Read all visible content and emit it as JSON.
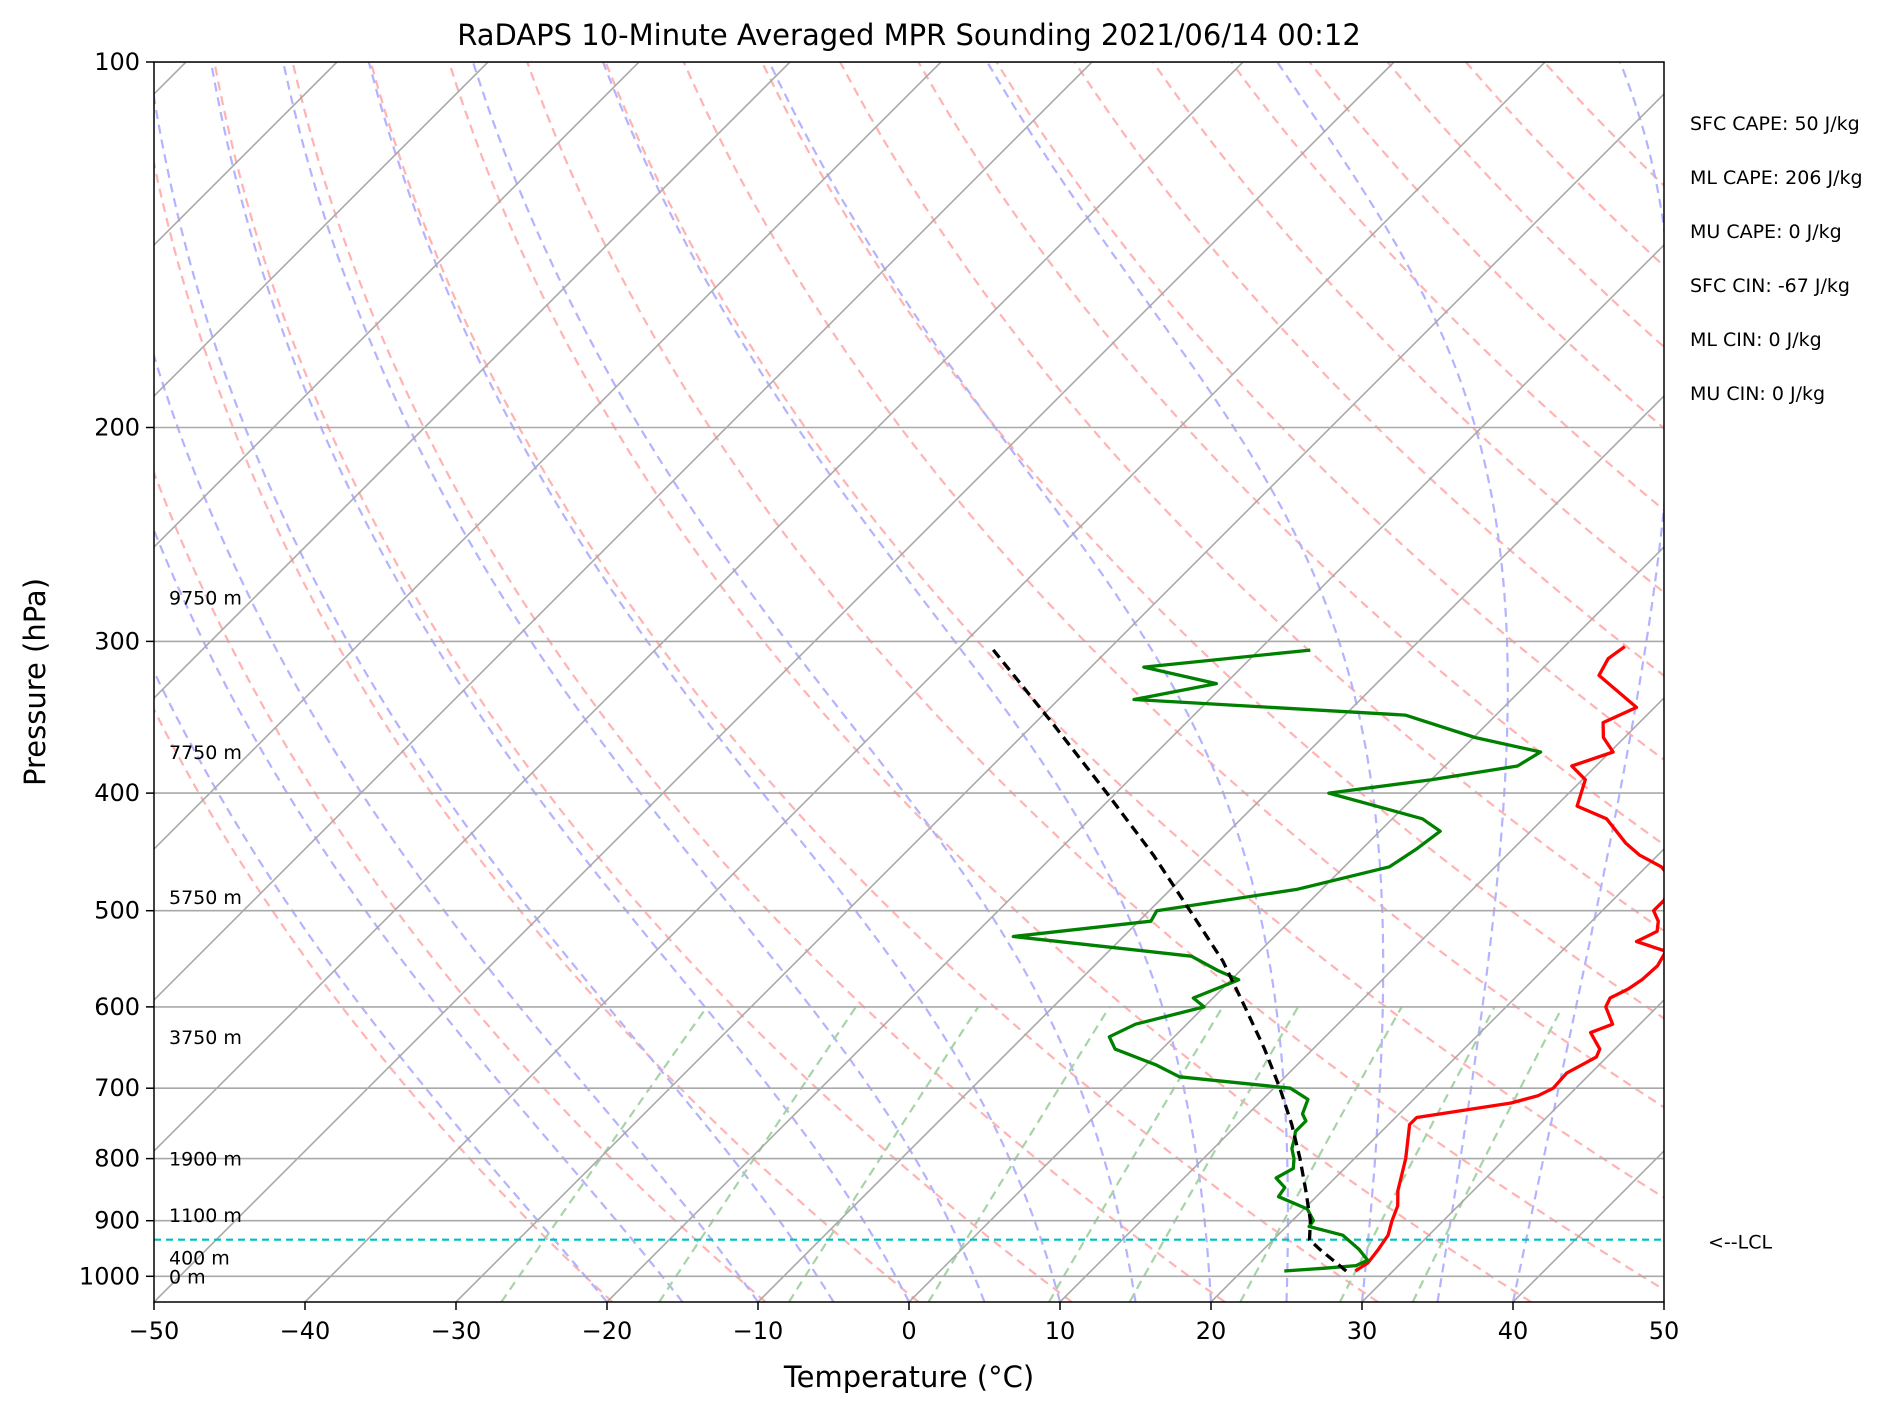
{
  "chart_data": {
    "type": "line",
    "title": "RaDAPS 10-Minute Averaged MPR Sounding 2021/06/14 00:12",
    "xlabel": "Temperature (°C)",
    "ylabel": "Pressure (hPa)",
    "xlim": [
      -50,
      50
    ],
    "ylim": [
      1050,
      100
    ],
    "y_scale": "log",
    "skew": "skew-T",
    "grid": true,
    "x_ticks": [
      -50,
      -40,
      -30,
      -20,
      -10,
      0,
      10,
      20,
      30,
      40,
      50
    ],
    "x_tick_labels": [
      "−50",
      "−40",
      "−30",
      "−20",
      "−10",
      "0",
      "10",
      "20",
      "30",
      "40",
      "50"
    ],
    "y_ticks": [
      100,
      200,
      300,
      400,
      500,
      600,
      700,
      800,
      900,
      1000
    ],
    "y_tick_labels": [
      "100",
      "200",
      "300",
      "400",
      "500",
      "600",
      "700",
      "800",
      "900",
      "1000"
    ],
    "series": [
      {
        "key": "temperature",
        "color": "#ff0000",
        "points": [
          [
            990,
            27.5
          ],
          [
            975,
            27.8
          ],
          [
            950,
            27.6
          ],
          [
            925,
            27.3
          ],
          [
            900,
            26.6
          ],
          [
            875,
            26.0
          ],
          [
            850,
            25.0
          ],
          [
            800,
            23.4
          ],
          [
            750,
            21.4
          ],
          [
            740,
            21.4
          ],
          [
            720,
            26.7
          ],
          [
            710,
            28.0
          ],
          [
            700,
            28.5
          ],
          [
            680,
            28.4
          ],
          [
            660,
            29.3
          ],
          [
            650,
            29.0
          ],
          [
            630,
            27.3
          ],
          [
            620,
            28.2
          ],
          [
            600,
            26.6
          ],
          [
            590,
            26.3
          ],
          [
            580,
            26.9
          ],
          [
            570,
            27.2
          ],
          [
            555,
            27.3
          ],
          [
            540,
            26.9
          ],
          [
            530,
            24.3
          ],
          [
            520,
            25.0
          ],
          [
            510,
            24.4
          ],
          [
            500,
            23.4
          ],
          [
            490,
            23.4
          ],
          [
            470,
            22.4
          ],
          [
            460,
            21.0
          ],
          [
            450,
            18.8
          ],
          [
            440,
            17.1
          ],
          [
            420,
            14.2
          ],
          [
            410,
            11.4
          ],
          [
            390,
            10.2
          ],
          [
            380,
            8.4
          ],
          [
            370,
            10.2
          ],
          [
            360,
            8.6
          ],
          [
            350,
            7.6
          ],
          [
            340,
            8.8
          ],
          [
            320,
            4.2
          ],
          [
            310,
            3.7
          ],
          [
            303,
            4.0
          ]
        ]
      },
      {
        "key": "dewpoint",
        "color": "#008000",
        "points": [
          [
            990,
            22.8
          ],
          [
            985,
            25.2
          ],
          [
            980,
            27.2
          ],
          [
            970,
            27.6
          ],
          [
            950,
            26.3
          ],
          [
            925,
            24.3
          ],
          [
            910,
            21.5
          ],
          [
            900,
            21.4
          ],
          [
            880,
            20.2
          ],
          [
            860,
            17.5
          ],
          [
            845,
            17.3
          ],
          [
            830,
            16.1
          ],
          [
            815,
            16.6
          ],
          [
            800,
            16.0
          ],
          [
            785,
            15.2
          ],
          [
            770,
            14.7
          ],
          [
            760,
            14.3
          ],
          [
            745,
            14.3
          ],
          [
            735,
            13.6
          ],
          [
            715,
            13.0
          ],
          [
            700,
            11.1
          ],
          [
            685,
            3.0
          ],
          [
            670,
            0.7
          ],
          [
            650,
            -3.1
          ],
          [
            635,
            -4.3
          ],
          [
            620,
            -3.4
          ],
          [
            600,
            0.0
          ],
          [
            590,
            -1.3
          ],
          [
            570,
            0.5
          ],
          [
            560,
            -1.5
          ],
          [
            545,
            -4.2
          ],
          [
            525,
            -17.3
          ],
          [
            510,
            -9.2
          ],
          [
            500,
            -9.5
          ],
          [
            480,
            -1.6
          ],
          [
            460,
            3.0
          ],
          [
            445,
            3.6
          ],
          [
            430,
            4.0
          ],
          [
            420,
            2.0
          ],
          [
            400,
            -5.9
          ],
          [
            390,
            0.0
          ],
          [
            380,
            4.8
          ],
          [
            370,
            5.4
          ],
          [
            360,
            0.1
          ],
          [
            345,
            -6.0
          ],
          [
            335,
            -25.0
          ],
          [
            325,
            -20.6
          ],
          [
            315,
            -26.5
          ],
          [
            305,
            -16.6
          ]
        ]
      },
      {
        "key": "parcel",
        "color": "#000000",
        "dashed": true,
        "points": [
          [
            990,
            26.9
          ],
          [
            950,
            23.7
          ],
          [
            933,
            22.4
          ],
          [
            900,
            21.2
          ],
          [
            850,
            18.9
          ],
          [
            800,
            16.4
          ],
          [
            750,
            13.6
          ],
          [
            700,
            10.4
          ],
          [
            650,
            6.8
          ],
          [
            600,
            2.7
          ],
          [
            550,
            -1.8
          ],
          [
            500,
            -7.3
          ],
          [
            450,
            -13.4
          ],
          [
            400,
            -20.6
          ],
          [
            350,
            -28.9
          ],
          [
            303,
            -38.0
          ]
        ]
      }
    ],
    "dry_adiabats_theta_K": [
      250,
      260,
      270,
      280,
      290,
      300,
      310,
      320,
      330,
      340,
      350,
      360,
      370,
      380,
      390,
      400,
      410,
      420,
      430,
      440,
      450
    ],
    "moist_adiabats_start_C": [
      -20,
      -15,
      -10,
      -5,
      0,
      5,
      10,
      15,
      20,
      25,
      30,
      35,
      40
    ],
    "mixing_ratio_lines_gkg": [
      0.4,
      1,
      2,
      4,
      7,
      10,
      16,
      24,
      32
    ],
    "height_labels": [
      {
        "p": 1000,
        "text": "0 m"
      },
      {
        "p": 965,
        "text": "400 m"
      },
      {
        "p": 890,
        "text": "1100 m"
      },
      {
        "p": 800,
        "text": "1900 m"
      },
      {
        "p": 635,
        "text": "3750 m"
      },
      {
        "p": 487,
        "text": "5750 m"
      },
      {
        "p": 370,
        "text": "7750 m"
      },
      {
        "p": 276,
        "text": "9750 m"
      }
    ],
    "lcl": {
      "p": 933,
      "label": "<--LCL",
      "color": "#00bfbf"
    },
    "indices": [
      "SFC CAPE: 50 J/kg",
      "ML CAPE: 206 J/kg",
      "MU CAPE: 0 J/kg",
      "SFC CIN: -67 J/kg",
      "ML CIN: 0 J/kg",
      "MU CIN: 0 J/kg"
    ],
    "colors": {
      "isobar": "#a9a9a9",
      "isotherm": "#a9a9a9",
      "dry_adiabat": "#ffb3b3",
      "moist_adiabat": "#b3b3ff",
      "mixing_ratio": "#a6d4a6"
    }
  }
}
